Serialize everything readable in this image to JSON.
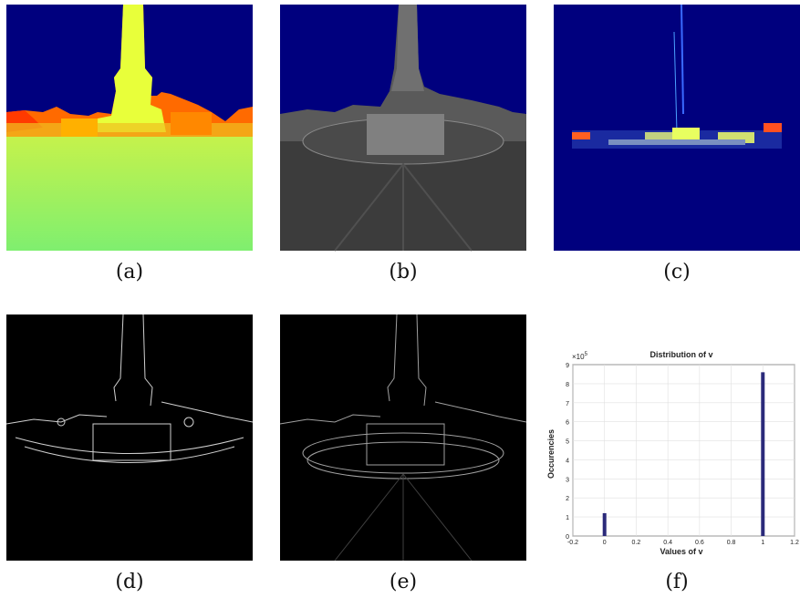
{
  "captions": {
    "a": "(a)",
    "b": "(b)",
    "c": "(c)",
    "d": "(d)",
    "e": "(e)",
    "f": "(f)"
  },
  "panels": {
    "a": {
      "description_icon": "depth-map-image"
    },
    "b": {
      "description_icon": "grayscale-photo-image"
    },
    "c": {
      "description_icon": "jet-colormap-image"
    },
    "d": {
      "description_icon": "edge-map-image"
    },
    "e": {
      "description_icon": "gradient-magnitude-image"
    }
  },
  "chart_data": {
    "type": "bar",
    "title": "Distribution of v",
    "xlabel": "Values of v",
    "ylabel": "Occurencies",
    "y_exponent_label": "×10",
    "y_exponent_power": "5",
    "x": [
      0,
      1
    ],
    "values": [
      1.2,
      8.6
    ],
    "xlim": [
      -0.2,
      1.2
    ],
    "ylim": [
      0,
      9
    ],
    "xticks": [
      "-0.2",
      "0",
      "0.2",
      "0.4",
      "0.6",
      "0.8",
      "1",
      "1.2"
    ],
    "yticks": [
      "0",
      "1",
      "2",
      "3",
      "4",
      "5",
      "6",
      "7",
      "8",
      "9"
    ],
    "grid": true,
    "bar_color": "#2b2a7a"
  }
}
